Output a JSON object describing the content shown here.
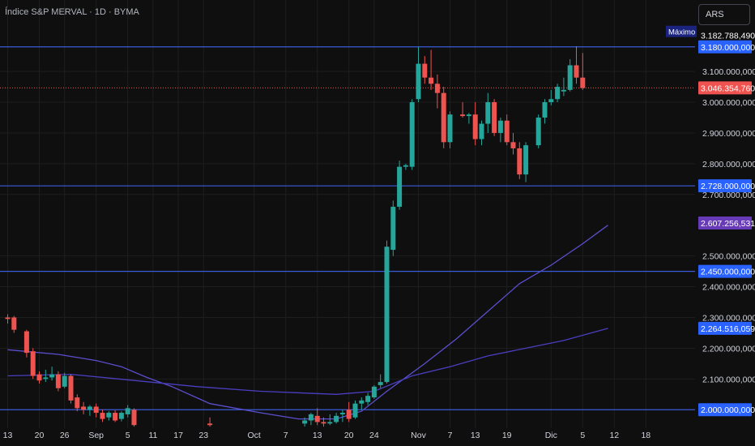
{
  "header": {
    "title": "Índice S&P MERVAL · 1D · BYMA",
    "currency": "ARS"
  },
  "colors": {
    "background": "#0f0f0f",
    "grid": "#1e1e1e",
    "up": "#26a69a",
    "down": "#ef5350",
    "level_line": "#3b5bdb",
    "level_label": "#2962ff",
    "ma_fast": "#5b4fcf",
    "ma_slow": "#4a3fc0",
    "ma_label": "#673ab7",
    "price_label": "#ef5350",
    "axis_text": "#d1d4dc",
    "max_label_bg": "#1a237e"
  },
  "chart_data": {
    "type": "candlestick",
    "ylim": [
      1940000000,
      3240000000
    ],
    "y_ticks": [
      {
        "value": 3100000000,
        "label": "3.100.000,000"
      },
      {
        "value": 3000000000,
        "label": "3.000.000,000"
      },
      {
        "value": 2900000000,
        "label": "2.900.000,000"
      },
      {
        "value": 2800000000,
        "label": "2.800.000,000"
      },
      {
        "value": 2700000000,
        "label": "2.700.000,000"
      },
      {
        "value": 2500000000,
        "label": "2.500.000,000"
      },
      {
        "value": 2400000000,
        "label": "2.400.000,000"
      },
      {
        "value": 2300000000,
        "label": "2.300.000,000"
      },
      {
        "value": 2200000000,
        "label": "2.200.000,000"
      },
      {
        "value": 2100000000,
        "label": "2.100.000,000"
      }
    ],
    "x_ticks": [
      {
        "index": 0,
        "label": "13"
      },
      {
        "index": 5,
        "label": "20"
      },
      {
        "index": 9,
        "label": "26"
      },
      {
        "index": 14,
        "label": "Sep"
      },
      {
        "index": 19,
        "label": "5"
      },
      {
        "index": 23,
        "label": "11"
      },
      {
        "index": 27,
        "label": "17"
      },
      {
        "index": 31,
        "label": "23"
      },
      {
        "index": 39,
        "label": "Oct"
      },
      {
        "index": 44,
        "label": "7"
      },
      {
        "index": 49,
        "label": "13"
      },
      {
        "index": 54,
        "label": "20"
      },
      {
        "index": 58,
        "label": "24"
      },
      {
        "index": 65,
        "label": "Nov"
      },
      {
        "index": 70,
        "label": "7"
      },
      {
        "index": 74,
        "label": "13"
      },
      {
        "index": 79,
        "label": "19"
      },
      {
        "index": 86,
        "label": "Dic"
      },
      {
        "index": 91,
        "label": "5"
      },
      {
        "index": 96,
        "label": "12"
      },
      {
        "index": 101,
        "label": "18"
      }
    ],
    "x_count": 104,
    "candles": [
      {
        "i": 0,
        "o": 2300000000,
        "h": 2310000000,
        "l": 2280000000,
        "c": 2295000000
      },
      {
        "i": 1,
        "o": 2300000000,
        "h": 2305000000,
        "l": 2250000000,
        "c": 2260000000
      },
      {
        "i": 3,
        "o": 2255000000,
        "h": 2260000000,
        "l": 2170000000,
        "c": 2185000000
      },
      {
        "i": 4,
        "o": 2190000000,
        "h": 2200000000,
        "l": 2100000000,
        "c": 2110000000
      },
      {
        "i": 5,
        "o": 2115000000,
        "h": 2125000000,
        "l": 2085000000,
        "c": 2095000000
      },
      {
        "i": 6,
        "o": 2100000000,
        "h": 2130000000,
        "l": 2090000000,
        "c": 2105000000
      },
      {
        "i": 7,
        "o": 2105000000,
        "h": 2140000000,
        "l": 2095000000,
        "c": 2115000000
      },
      {
        "i": 8,
        "o": 2115000000,
        "h": 2125000000,
        "l": 2060000000,
        "c": 2070000000
      },
      {
        "i": 9,
        "o": 2075000000,
        "h": 2120000000,
        "l": 2070000000,
        "c": 2110000000
      },
      {
        "i": 10,
        "o": 2110000000,
        "h": 2115000000,
        "l": 2020000000,
        "c": 2030000000
      },
      {
        "i": 11,
        "o": 2040000000,
        "h": 2050000000,
        "l": 1995000000,
        "c": 2005000000
      },
      {
        "i": 12,
        "o": 2010000000,
        "h": 2025000000,
        "l": 1985000000,
        "c": 2000000000
      },
      {
        "i": 13,
        "o": 2000000000,
        "h": 2015000000,
        "l": 1980000000,
        "c": 2010000000
      },
      {
        "i": 14,
        "o": 2010000000,
        "h": 2020000000,
        "l": 1975000000,
        "c": 1990000000
      },
      {
        "i": 15,
        "o": 1990000000,
        "h": 2000000000,
        "l": 1960000000,
        "c": 1970000000
      },
      {
        "i": 16,
        "o": 1975000000,
        "h": 1995000000,
        "l": 1965000000,
        "c": 1990000000
      },
      {
        "i": 17,
        "o": 1990000000,
        "h": 1998000000,
        "l": 1960000000,
        "c": 1965000000
      },
      {
        "i": 18,
        "o": 1970000000,
        "h": 1995000000,
        "l": 1962000000,
        "c": 1990000000
      },
      {
        "i": 19,
        "o": 1985000000,
        "h": 2015000000,
        "l": 1975000000,
        "c": 2005000000
      },
      {
        "i": 20,
        "o": 2000000000,
        "h": 2005000000,
        "l": 1945000000,
        "c": 1950000000
      },
      {
        "i": 32,
        "o": 1955000000,
        "h": 1975000000,
        "l": 1945000000,
        "c": 1950000000
      },
      {
        "i": 47,
        "o": 1955000000,
        "h": 1975000000,
        "l": 1945000000,
        "c": 1965000000
      },
      {
        "i": 48,
        "o": 1965000000,
        "h": 1990000000,
        "l": 1950000000,
        "c": 1985000000
      },
      {
        "i": 49,
        "o": 1980000000,
        "h": 2005000000,
        "l": 1950000000,
        "c": 1960000000
      },
      {
        "i": 50,
        "o": 1960000000,
        "h": 1975000000,
        "l": 1945000000,
        "c": 1955000000
      },
      {
        "i": 51,
        "o": 1955000000,
        "h": 1985000000,
        "l": 1950000000,
        "c": 1960000000
      },
      {
        "i": 52,
        "o": 1960000000,
        "h": 1990000000,
        "l": 1955000000,
        "c": 1980000000
      },
      {
        "i": 53,
        "o": 1985000000,
        "h": 2000000000,
        "l": 1960000000,
        "c": 1990000000
      },
      {
        "i": 54,
        "o": 2000000000,
        "h": 2025000000,
        "l": 1960000000,
        "c": 1970000000
      },
      {
        "i": 55,
        "o": 1975000000,
        "h": 2030000000,
        "l": 1970000000,
        "c": 2020000000
      },
      {
        "i": 56,
        "o": 2020000000,
        "h": 2040000000,
        "l": 2000000000,
        "c": 2030000000
      },
      {
        "i": 57,
        "o": 2025000000,
        "h": 2055000000,
        "l": 2015000000,
        "c": 2045000000
      },
      {
        "i": 58,
        "o": 2040000000,
        "h": 2080000000,
        "l": 2035000000,
        "c": 2075000000
      },
      {
        "i": 59,
        "o": 2080000000,
        "h": 2115000000,
        "l": 2070000000,
        "c": 2090000000
      },
      {
        "i": 60,
        "o": 2090000000,
        "h": 2550000000,
        "l": 2085000000,
        "c": 2530000000
      },
      {
        "i": 61,
        "o": 2520000000,
        "h": 2680000000,
        "l": 2500000000,
        "c": 2660000000
      },
      {
        "i": 62,
        "o": 2660000000,
        "h": 2810000000,
        "l": 2650000000,
        "c": 2790000000
      },
      {
        "i": 63,
        "o": 2790000000,
        "h": 2800000000,
        "l": 2780000000,
        "c": 2795000000
      },
      {
        "i": 64,
        "o": 2790000000,
        "h": 3010000000,
        "l": 2780000000,
        "c": 3000000000
      },
      {
        "i": 65,
        "o": 3010000000,
        "h": 3180000000,
        "l": 3000000000,
        "c": 3125000000
      },
      {
        "i": 66,
        "o": 3125000000,
        "h": 3150000000,
        "l": 3060000000,
        "c": 3080000000
      },
      {
        "i": 67,
        "o": 3080000000,
        "h": 3170000000,
        "l": 3040000000,
        "c": 3060000000
      },
      {
        "i": 68,
        "o": 3060000000,
        "h": 3090000000,
        "l": 2980000000,
        "c": 3030000000
      },
      {
        "i": 69,
        "o": 3030000000,
        "h": 3050000000,
        "l": 2850000000,
        "c": 2870000000
      },
      {
        "i": 70,
        "o": 2870000000,
        "h": 2970000000,
        "l": 2850000000,
        "c": 2960000000
      },
      {
        "i": 72,
        "o": 2960000000,
        "h": 3000000000,
        "l": 2950000000,
        "c": 2955000000
      },
      {
        "i": 73,
        "o": 2955000000,
        "h": 2965000000,
        "l": 2930000000,
        "c": 2960000000
      },
      {
        "i": 74,
        "o": 2960000000,
        "h": 3000000000,
        "l": 2860000000,
        "c": 2880000000
      },
      {
        "i": 75,
        "o": 2880000000,
        "h": 2940000000,
        "l": 2860000000,
        "c": 2930000000
      },
      {
        "i": 76,
        "o": 2930000000,
        "h": 3030000000,
        "l": 2900000000,
        "c": 3000000000
      },
      {
        "i": 77,
        "o": 3000000000,
        "h": 3010000000,
        "l": 2890000000,
        "c": 2900000000
      },
      {
        "i": 78,
        "o": 2900000000,
        "h": 2950000000,
        "l": 2870000000,
        "c": 2940000000
      },
      {
        "i": 79,
        "o": 2940000000,
        "h": 2960000000,
        "l": 2860000000,
        "c": 2870000000
      },
      {
        "i": 80,
        "o": 2870000000,
        "h": 2900000000,
        "l": 2830000000,
        "c": 2850000000
      },
      {
        "i": 81,
        "o": 2850000000,
        "h": 2870000000,
        "l": 2750000000,
        "c": 2765000000
      },
      {
        "i": 82,
        "o": 2765000000,
        "h": 2870000000,
        "l": 2740000000,
        "c": 2860000000
      },
      {
        "i": 84,
        "o": 2860000000,
        "h": 2960000000,
        "l": 2850000000,
        "c": 2950000000
      },
      {
        "i": 85,
        "o": 2950000000,
        "h": 3010000000,
        "l": 2930000000,
        "c": 3000000000
      },
      {
        "i": 86,
        "o": 3000000000,
        "h": 3040000000,
        "l": 2990000000,
        "c": 3010000000
      },
      {
        "i": 87,
        "o": 3010000000,
        "h": 3060000000,
        "l": 3000000000,
        "c": 3050000000
      },
      {
        "i": 88,
        "o": 3035000000,
        "h": 3080000000,
        "l": 3020000000,
        "c": 3040000000
      },
      {
        "i": 89,
        "o": 3040000000,
        "h": 3140000000,
        "l": 3035000000,
        "c": 3120000000
      },
      {
        "i": 90,
        "o": 3120000000,
        "h": 3182000000,
        "l": 3060000000,
        "c": 3080000000
      },
      {
        "i": 91,
        "o": 3080000000,
        "h": 3160000000,
        "l": 3040000000,
        "c": 3046354760
      }
    ],
    "series": [
      {
        "points": [
          [
            0,
            2195000000
          ],
          [
            8,
            2180000000
          ],
          [
            14,
            2160000000
          ],
          [
            18,
            2140000000
          ],
          [
            22,
            2105000000
          ],
          [
            26,
            2075000000
          ],
          [
            32,
            2020000000
          ],
          [
            40,
            1990000000
          ],
          [
            46,
            1970000000
          ],
          [
            52,
            1970000000
          ],
          [
            56,
            1995000000
          ],
          [
            60,
            2060000000
          ],
          [
            66,
            2150000000
          ],
          [
            71,
            2230000000
          ],
          [
            76,
            2320000000
          ],
          [
            81,
            2410000000
          ],
          [
            86,
            2470000000
          ],
          [
            91,
            2540000000
          ],
          [
            95,
            2600000000
          ]
        ]
      },
      {
        "points": [
          [
            0,
            2110000000
          ],
          [
            10,
            2115000000
          ],
          [
            20,
            2095000000
          ],
          [
            30,
            2075000000
          ],
          [
            40,
            2060000000
          ],
          [
            52,
            2050000000
          ],
          [
            58,
            2060000000
          ],
          [
            64,
            2110000000
          ],
          [
            70,
            2140000000
          ],
          [
            76,
            2175000000
          ],
          [
            82,
            2200000000
          ],
          [
            88,
            2225000000
          ],
          [
            95,
            2264516059
          ]
        ]
      }
    ],
    "levels": [
      {
        "value": 3180000000,
        "label": "3.180.000,000"
      },
      {
        "value": 2728000000,
        "label": "2.728.000,000"
      },
      {
        "value": 2450000000,
        "label": "2.450.000,000"
      },
      {
        "value": 2000000000,
        "label": "2.000.000,000"
      }
    ],
    "markers": [
      {
        "value": 3182788490,
        "label": "3.182.788,490",
        "tag": "Máximo"
      },
      {
        "value": 3046354760,
        "label": "3.046.354,760",
        "kind": "price"
      },
      {
        "value": 2607256531,
        "label": "2.607.256,531",
        "kind": "ma_fast"
      },
      {
        "value": 2264516059,
        "label": "2.264.516,059",
        "kind": "ma_slow"
      }
    ]
  }
}
